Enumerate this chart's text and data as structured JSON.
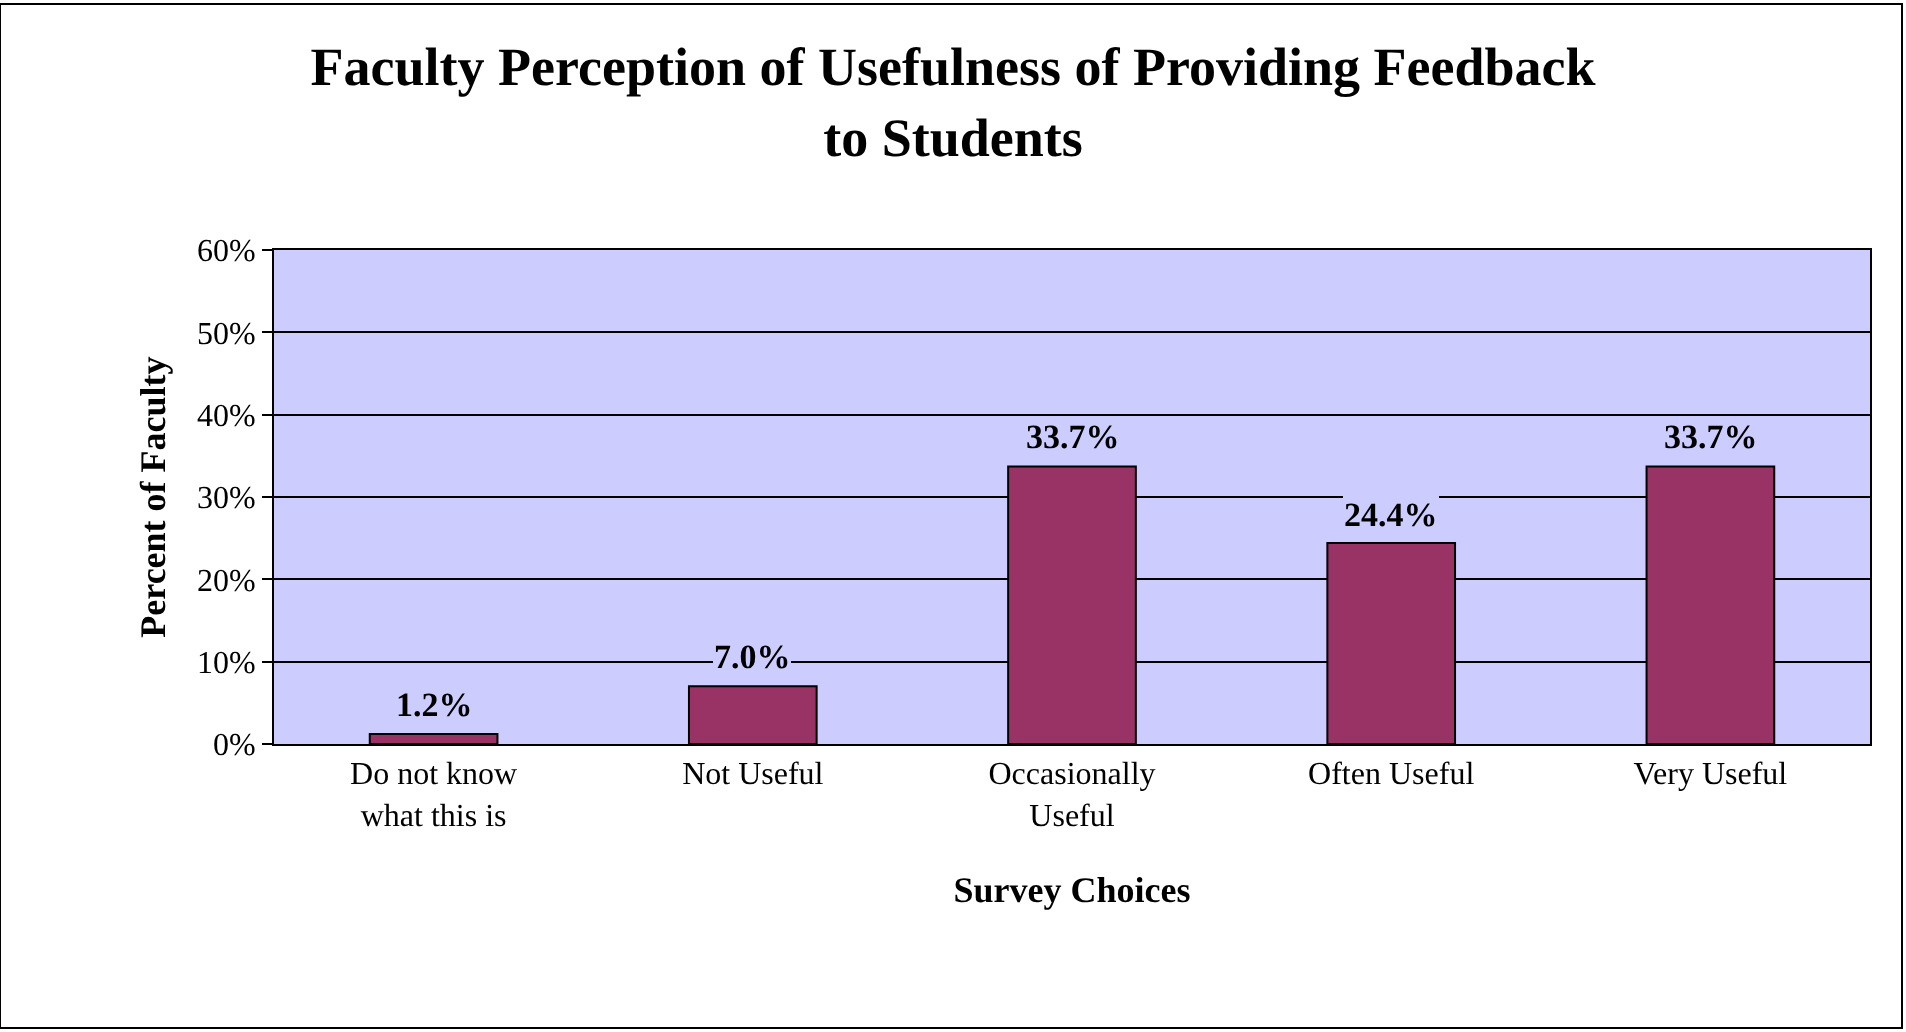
{
  "chart_data": {
    "type": "bar",
    "title": "Faculty Perception of Usefulness of Providing Feedback to Students",
    "xlabel": "Survey Choices",
    "ylabel": "Percent of Faculty",
    "categories": [
      "Do not know what this is",
      "Not Useful",
      "Occasionally Useful",
      "Often Useful",
      "Very Useful"
    ],
    "values": [
      1.2,
      7.0,
      33.7,
      24.4,
      33.7
    ],
    "value_labels": [
      "1.2%",
      "7.0%",
      "33.7%",
      "24.4%",
      "33.7%"
    ],
    "color": "#993366",
    "ylim": [
      0,
      60
    ],
    "yticks": [
      {
        "value": 0,
        "label": "0%"
      },
      {
        "value": 10,
        "label": "10%"
      },
      {
        "value": 20,
        "label": "20%"
      },
      {
        "value": 30,
        "label": "30%"
      },
      {
        "value": 40,
        "label": "40%"
      },
      {
        "value": 50,
        "label": "50%"
      },
      {
        "value": 60,
        "label": "60%"
      }
    ],
    "grid": "y",
    "legend": false
  }
}
